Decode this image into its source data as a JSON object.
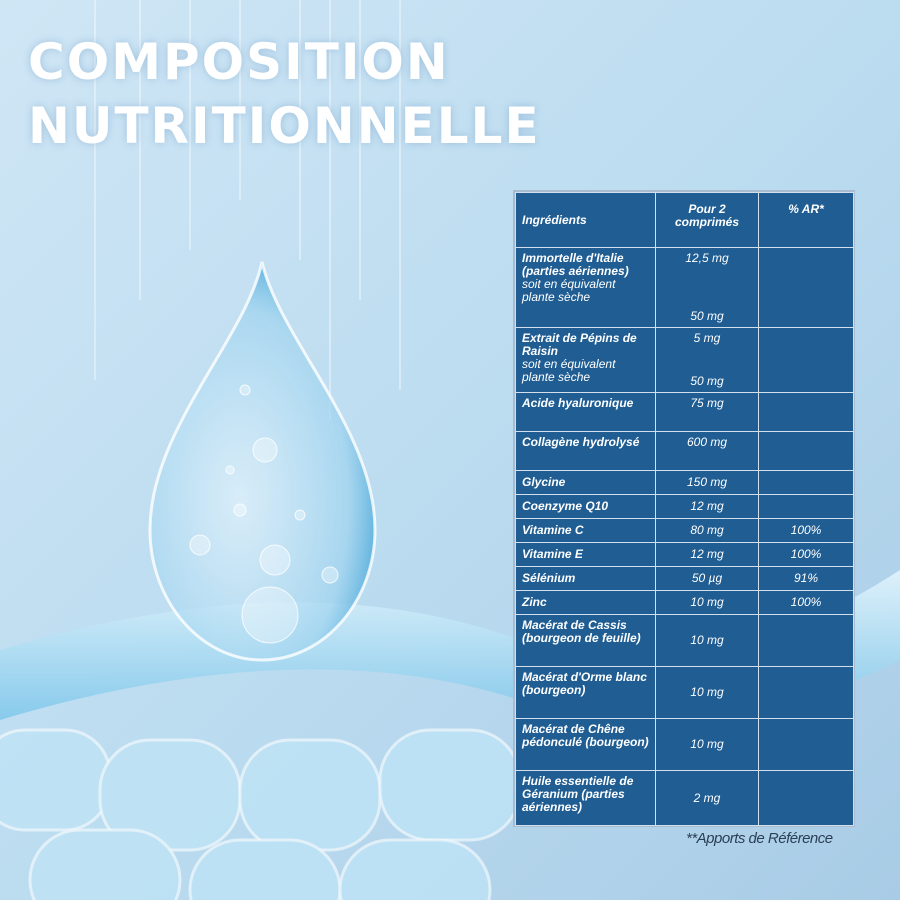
{
  "header": {
    "title": [
      "COMPOSITION",
      "NUTRITIONNELLE"
    ]
  },
  "table": {
    "columns": [
      "Ingrédients",
      "Pour 2 comprimés",
      "% AR*"
    ],
    "rows": [
      {
        "name": "Immortelle d'Italie (parties aériennes)",
        "note": "soit en équivalent plante sèche",
        "amounts": [
          "12,5 mg",
          "50 mg"
        ]
      },
      {
        "name": "Extrait de Pépins de Raisin",
        "note": "soit en équivalent plante sèche",
        "amounts": [
          "5 mg",
          "50 mg"
        ]
      },
      {
        "name": "Acide hyaluronique",
        "amounts": [
          "75 mg"
        ]
      },
      {
        "name": "Collagène hydrolysé",
        "amounts": [
          "600 mg"
        ]
      },
      {
        "name": "Glycine",
        "amounts": [
          "150 mg"
        ]
      },
      {
        "name": "Coenzyme Q10",
        "amounts": [
          "12 mg"
        ]
      },
      {
        "name": "Vitamine C",
        "amounts": [
          "80 mg"
        ],
        "ar": "100%"
      },
      {
        "name": "Vitamine E",
        "amounts": [
          "12 mg"
        ],
        "ar": "100%"
      },
      {
        "name": "Sélénium",
        "amounts": [
          "50 µg"
        ],
        "ar": "91%"
      },
      {
        "name": "Zinc",
        "amounts": [
          "10 mg"
        ],
        "ar": "100%"
      },
      {
        "name": "Macérat de Cassis (bourgeon de feuille)",
        "amounts": [
          "10 mg"
        ]
      },
      {
        "name": "Macérat d'Orme blanc (bourgeon)",
        "amounts": [
          "10 mg"
        ]
      },
      {
        "name": "Macérat de Chêne pédonculé (bourgeon)",
        "amounts": [
          "10 mg"
        ]
      },
      {
        "name": "Huile essentielle de Géranium (parties aériennes)",
        "amounts": [
          "2 mg"
        ]
      }
    ]
  },
  "footnote": "**Apports de Référence"
}
